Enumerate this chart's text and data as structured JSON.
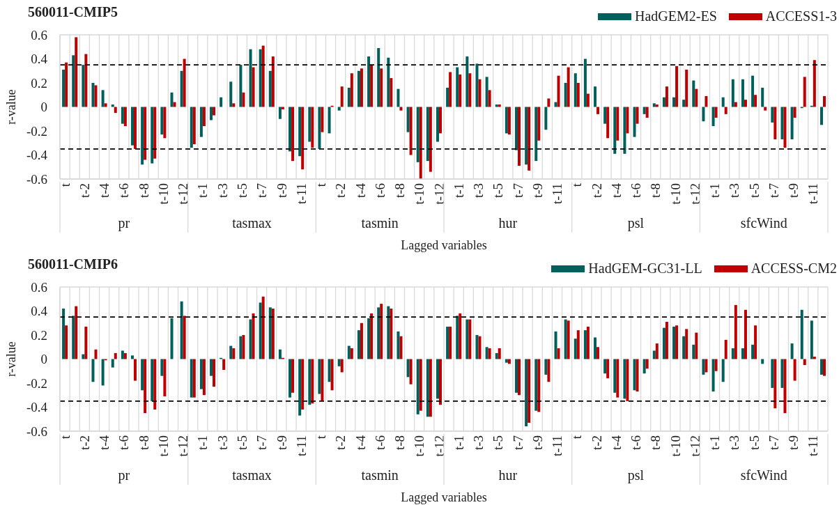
{
  "chart_data": [
    {
      "type": "bar",
      "title": "560011-CMIP5",
      "xlabel": "Lagged variables",
      "ylabel": "r-value",
      "categories": [
        "t",
        null,
        "t-2",
        null,
        "t-4",
        null,
        "t-6",
        null,
        "t-8",
        null,
        "t-10",
        null,
        "t-12",
        null,
        "t-1",
        null,
        "t-3",
        null,
        "t-5",
        null,
        "t-7",
        null,
        "t-9",
        null,
        "t-11",
        null,
        "t",
        null,
        "t-2",
        null,
        "t-4",
        null,
        "t-6",
        null,
        "t-8",
        null,
        "t-10",
        null,
        "t-12",
        null,
        "t-1",
        null,
        "t-3",
        null,
        "t-5",
        null,
        "t-7",
        null,
        "t-9",
        null,
        "t-11",
        null,
        "t",
        null,
        "t-2",
        null,
        "t-4",
        null,
        "t-6",
        null,
        "t-8",
        null,
        "t-10",
        null,
        "t-12",
        null,
        "t-1",
        null,
        "t-3",
        null,
        "t-5",
        null,
        "t-7",
        null,
        "t-9",
        null,
        "t-11",
        null
      ],
      "series": [
        {
          "name": "HadGEM2-ES",
          "color": "#00605b",
          "values": [
            0.31,
            0.43,
            0.35,
            0.2,
            0.14,
            0.02,
            -0.14,
            -0.32,
            -0.48,
            -0.47,
            -0.23,
            0.12,
            0.3,
            -0.34,
            -0.25,
            -0.11,
            0.08,
            0.21,
            0.35,
            0.48,
            0.48,
            0.3,
            -0.1,
            -0.37,
            -0.41,
            -0.29,
            -0.35,
            -0.22,
            -0.03,
            0.16,
            0.3,
            0.42,
            0.49,
            0.41,
            0.15,
            -0.21,
            -0.46,
            -0.45,
            -0.29,
            0.16,
            0.33,
            0.42,
            0.36,
            0.25,
            0.02,
            -0.22,
            -0.36,
            -0.48,
            -0.45,
            -0.19,
            0.04,
            0.2,
            0.28,
            0.4,
            0.17,
            -0.14,
            -0.39,
            -0.39,
            -0.25,
            -0.06,
            0.03,
            0.08,
            0.08,
            0.06,
            0.22,
            -0.12,
            -0.16,
            0.08,
            0.23,
            0.23,
            0.26,
            0.16,
            -0.13,
            -0.27,
            -0.27,
            -0.01,
            0.01,
            -0.15
          ]
        },
        {
          "name": "ACCESS1-3",
          "color": "#c00000",
          "values": [
            0.37,
            0.58,
            0.44,
            0.18,
            0.03,
            -0.05,
            -0.16,
            -0.35,
            -0.44,
            -0.43,
            -0.26,
            0.04,
            0.4,
            -0.31,
            -0.16,
            -0.07,
            0,
            0.03,
            0.12,
            0.33,
            0.51,
            0.42,
            -0.02,
            -0.45,
            -0.52,
            -0.34,
            -0.21,
            0.01,
            0.17,
            0.28,
            0.32,
            0.35,
            0.32,
            0.24,
            -0.03,
            -0.4,
            -0.6,
            -0.54,
            -0.22,
            0.29,
            0.27,
            0.28,
            0.23,
            0.14,
            0.02,
            -0.23,
            -0.49,
            -0.53,
            -0.28,
            0.07,
            0.26,
            0.33,
            0.2,
            0.11,
            -0.06,
            -0.26,
            -0.28,
            -0.22,
            -0.14,
            -0.09,
            0.02,
            0.17,
            0.34,
            0.31,
            0.15,
            0.09,
            -0.09,
            -0.06,
            0.04,
            0.06,
            0.1,
            -0.03,
            -0.27,
            -0.34,
            -0.09,
            0.25,
            0.39,
            0.09
          ]
        }
      ],
      "ylim": [
        -0.6,
        0.6
      ],
      "yticks": [
        -0.6,
        -0.4,
        -0.2,
        0,
        0.2,
        0.4,
        0.6
      ],
      "grid": true,
      "legend": "top right",
      "ref_lines": [
        {
          "axis": "y",
          "value": 0.35,
          "color": "#000000",
          "line_style": "dashed"
        },
        {
          "axis": "y",
          "value": -0.35,
          "color": "#000000",
          "line_style": "dashed"
        }
      ],
      "annotations": [
        "pr",
        "tasmax",
        "tasmin",
        "hur",
        "psl",
        "sfcWind"
      ]
    },
    {
      "type": "bar",
      "title": "560011-CMIP6",
      "xlabel": "Lagged variables",
      "ylabel": "r-value",
      "categories": [
        "t",
        null,
        "t-2",
        null,
        "t-4",
        null,
        "t-6",
        null,
        "t-8",
        null,
        "t-10",
        null,
        "t-12",
        null,
        "t-1",
        null,
        "t-3",
        null,
        "t-5",
        null,
        "t-7",
        null,
        "t-9",
        null,
        "t-11",
        null,
        "t",
        null,
        "t-2",
        null,
        "t-4",
        null,
        "t-6",
        null,
        "t-8",
        null,
        "t-10",
        null,
        "t-12",
        null,
        "t-1",
        null,
        "t-3",
        null,
        "t-5",
        null,
        "t-7",
        null,
        "t-9",
        null,
        "t-11",
        null,
        "t",
        null,
        "t-2",
        null,
        "t-4",
        null,
        "t-6",
        null,
        "t-8",
        null,
        "t-10",
        null,
        "t-12",
        null,
        "t-1",
        null,
        "t-3",
        null,
        "t-5",
        null,
        "t-7",
        null,
        "t-9",
        null,
        "t-11",
        null
      ],
      "series": [
        {
          "name": "HadGEM-GC31-LL",
          "color": "#00605b",
          "values": [
            0.42,
            0.36,
            0.04,
            -0.19,
            -0.22,
            -0.07,
            0.07,
            0.03,
            -0.26,
            -0.35,
            -0.14,
            0.34,
            0.48,
            -0.32,
            -0.25,
            -0.14,
            0.01,
            0.11,
            0.19,
            0.33,
            0.47,
            0.43,
            0.08,
            -0.32,
            -0.47,
            -0.38,
            -0.29,
            -0.19,
            -0.06,
            0.11,
            0.24,
            0.34,
            0.43,
            0.44,
            0.23,
            -0.15,
            -0.46,
            -0.48,
            -0.33,
            0.27,
            0.36,
            0.33,
            0.2,
            0.1,
            0.05,
            -0.03,
            -0.28,
            -0.56,
            -0.43,
            -0.13,
            0.23,
            0.33,
            0.17,
            0.24,
            0.18,
            -0.12,
            -0.28,
            -0.33,
            -0.26,
            -0.12,
            0.07,
            0.26,
            0.27,
            0.19,
            0.12,
            -0.13,
            -0.27,
            -0.19,
            0.09,
            0.09,
            0.12,
            -0.04,
            -0.24,
            -0.24,
            0.13,
            0.41,
            0.32,
            -0.13
          ]
        },
        {
          "name": "ACCESS-CM2",
          "color": "#c00000",
          "values": [
            0.28,
            0.44,
            0.27,
            0.08,
            -0.01,
            0.05,
            0.05,
            -0.18,
            -0.45,
            -0.42,
            -0.31,
            0,
            0.36,
            -0.32,
            -0.3,
            -0.23,
            -0.09,
            0.09,
            0.2,
            0.38,
            0.52,
            0.42,
            0.01,
            -0.28,
            -0.42,
            -0.37,
            -0.35,
            -0.26,
            -0.11,
            0.09,
            0.3,
            0.38,
            0.46,
            0.42,
            0.19,
            -0.21,
            -0.43,
            -0.48,
            -0.38,
            0.27,
            0.38,
            0.33,
            0.19,
            0.09,
            0.09,
            -0.04,
            -0.3,
            -0.53,
            -0.44,
            -0.19,
            0.09,
            0.32,
            0.24,
            0.27,
            0.1,
            -0.16,
            -0.32,
            -0.35,
            -0.27,
            -0.08,
            0.13,
            0.31,
            0.28,
            0.25,
            0.22,
            -0.11,
            -0.1,
            0.16,
            0.45,
            0.41,
            0.28,
            0,
            -0.41,
            -0.45,
            -0.18,
            -0.05,
            0.02,
            -0.14
          ]
        }
      ],
      "ylim": [
        -0.6,
        0.6
      ],
      "yticks": [
        -0.6,
        -0.4,
        -0.2,
        0,
        0.2,
        0.4,
        0.6
      ],
      "grid": true,
      "legend": "top right",
      "ref_lines": [
        {
          "axis": "y",
          "value": 0.35,
          "color": "#000000",
          "line_style": "dashed"
        },
        {
          "axis": "y",
          "value": -0.35,
          "color": "#000000",
          "line_style": "dashed"
        }
      ],
      "annotations": [
        "pr",
        "tasmax",
        "tasmin",
        "hur",
        "psl",
        "sfcWind"
      ]
    }
  ]
}
